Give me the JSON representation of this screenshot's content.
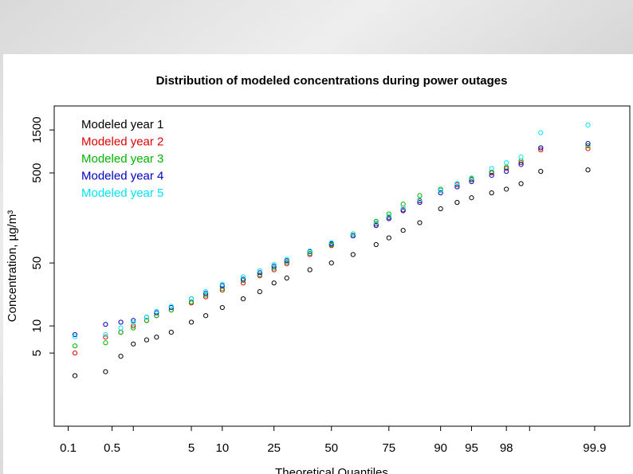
{
  "chart_data": {
    "type": "scatter",
    "title": "Distribution of modeled concentrations during power outages",
    "xlabel": "Theoretical Quantiles",
    "ylabel": "Concentration, µg/m³",
    "xscale": "probit",
    "yscale": "log",
    "xlim": [
      0.0567,
      99.977
    ],
    "ylim": [
      0.77,
      2770
    ],
    "xticks": [
      0.1,
      0.5,
      5,
      10,
      25,
      50,
      75,
      90,
      95,
      98,
      99.9
    ],
    "xminor_ticks": [
      1,
      99
    ],
    "yticks": [
      5,
      10,
      50,
      500,
      1500
    ],
    "legend": "top-left",
    "x": [
      0.13,
      0.4,
      0.67,
      1,
      1.5,
      2,
      3,
      5,
      7,
      10,
      15,
      20,
      25,
      30,
      40,
      50,
      60,
      70,
      75,
      80,
      85,
      90,
      93,
      95,
      97,
      98,
      98.7,
      99.3,
      99.87
    ],
    "series": [
      {
        "name": "Modeled year 1",
        "color": "#000000",
        "values": [
          2.8,
          3.1,
          4.6,
          6.3,
          7,
          7.5,
          8.5,
          11,
          13,
          16,
          20,
          24,
          30,
          34,
          42,
          50,
          62,
          80,
          95,
          115,
          140,
          200,
          235,
          265,
          300,
          330,
          380,
          520,
          540
        ]
      },
      {
        "name": "Modeled year 2",
        "color": "#e00000",
        "values": [
          5,
          7.5,
          8.5,
          10,
          11.5,
          13,
          15,
          18,
          21,
          25,
          30,
          36,
          42,
          49,
          62,
          78,
          100,
          135,
          160,
          195,
          245,
          320,
          370,
          420,
          500,
          560,
          650,
          900,
          930
        ]
      },
      {
        "name": "Modeled year 3",
        "color": "#00b400",
        "values": [
          6,
          6.5,
          8.5,
          9.5,
          11.5,
          13,
          15,
          18.5,
          22,
          26,
          32,
          37,
          44,
          51,
          64,
          80,
          105,
          145,
          175,
          225,
          280,
          330,
          380,
          430,
          510,
          580,
          680,
          950,
          1000
        ]
      },
      {
        "name": "Modeled year 4",
        "color": "#0000c0",
        "values": [
          8,
          10.4,
          11,
          11.5,
          12.5,
          14,
          16,
          20,
          23,
          28,
          33,
          39,
          46,
          53,
          67,
          82,
          100,
          130,
          155,
          190,
          235,
          300,
          350,
          400,
          470,
          520,
          620,
          950,
          1060
        ]
      },
      {
        "name": "Modeled year 5",
        "color": "#00e5ee",
        "values": [
          7.6,
          8,
          9.5,
          11,
          12.5,
          14.5,
          16.5,
          20,
          24,
          29,
          35,
          41,
          48,
          55,
          68,
          84,
          104,
          140,
          165,
          205,
          250,
          320,
          380,
          440,
          560,
          650,
          750,
          1400,
          1700
        ]
      }
    ]
  }
}
